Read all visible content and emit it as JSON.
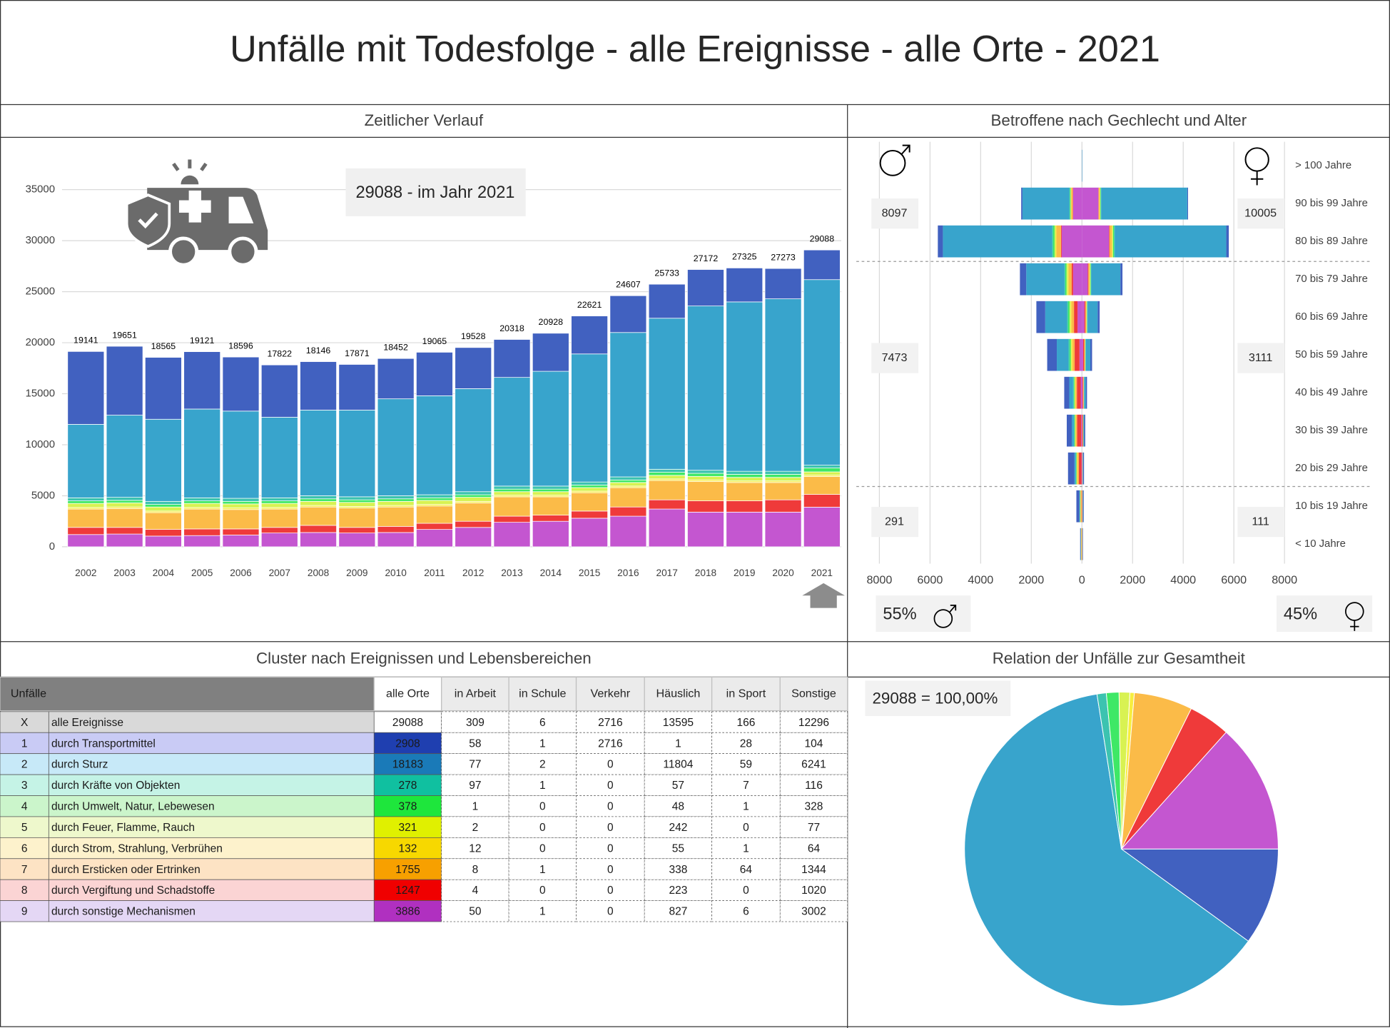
{
  "title": "Unfälle mit Todesfolge - alle Ereignisse - alle Orte - 2021",
  "chart_data": [
    {
      "type": "stacked_bar",
      "title": "Zeitlicher Verlauf",
      "annotation": "29088 - im Jahr 2021",
      "categories": [
        "2002",
        "2003",
        "2004",
        "2005",
        "2006",
        "2007",
        "2008",
        "2009",
        "2010",
        "2011",
        "2012",
        "2013",
        "2014",
        "2015",
        "2016",
        "2017",
        "2018",
        "2019",
        "2020",
        "2021"
      ],
      "series": [
        {
          "color": "#4161c0",
          "values": [
            7141,
            6751,
            6065,
            5621,
            5296,
            5122,
            4746,
            4471,
            3952,
            4265,
            4028,
            3718,
            3728,
            3721,
            3607,
            3333,
            3572,
            3325,
            2973,
            2908
          ]
        },
        {
          "color": "#38a4cc",
          "values": [
            7200,
            8050,
            8050,
            8700,
            8550,
            7900,
            8400,
            8500,
            9500,
            9700,
            10100,
            10650,
            11250,
            12550,
            14150,
            14800,
            16100,
            16600,
            16900,
            18183
          ]
        },
        {
          "color": "#3cc3b0",
          "values": [
            300,
            300,
            300,
            300,
            300,
            300,
            300,
            300,
            300,
            300,
            300,
            300,
            300,
            300,
            300,
            300,
            300,
            300,
            300,
            278
          ]
        },
        {
          "color": "#3ee866",
          "values": [
            250,
            250,
            250,
            250,
            250,
            250,
            250,
            250,
            250,
            250,
            250,
            250,
            250,
            250,
            250,
            300,
            300,
            300,
            300,
            378
          ]
        },
        {
          "color": "#d8f252",
          "values": [
            400,
            400,
            400,
            400,
            400,
            400,
            400,
            400,
            400,
            400,
            400,
            350,
            350,
            350,
            350,
            350,
            350,
            350,
            350,
            321
          ]
        },
        {
          "color": "#f7ee3e",
          "values": [
            150,
            150,
            150,
            150,
            150,
            150,
            150,
            150,
            150,
            150,
            150,
            150,
            150,
            150,
            150,
            150,
            150,
            150,
            150,
            132
          ]
        },
        {
          "color": "#fbbb48",
          "values": [
            1800,
            1850,
            1650,
            1950,
            1900,
            1800,
            1800,
            1900,
            1900,
            1700,
            1800,
            1900,
            1800,
            1800,
            1900,
            1900,
            1900,
            1800,
            1700,
            1755
          ]
        },
        {
          "color": "#ef3a3a",
          "values": [
            700,
            650,
            650,
            650,
            600,
            550,
            700,
            550,
            600,
            600,
            600,
            600,
            600,
            700,
            900,
            900,
            1100,
            1100,
            1200,
            1247
          ]
        },
        {
          "color": "#c456d0",
          "values": [
            1200,
            1250,
            1050,
            1100,
            1150,
            1350,
            1400,
            1350,
            1400,
            1700,
            1900,
            2400,
            2500,
            2800,
            3000,
            3700,
            3400,
            3400,
            3400,
            3886
          ]
        }
      ],
      "totals": [
        19141,
        19651,
        18565,
        19121,
        18596,
        17822,
        18146,
        17871,
        18452,
        19065,
        19528,
        20318,
        20928,
        22621,
        24607,
        25733,
        27172,
        27325,
        27273,
        29088
      ],
      "ylim": [
        0,
        35000
      ],
      "yticks": [
        0,
        5000,
        10000,
        15000,
        20000,
        25000,
        30000,
        35000
      ],
      "grid": true
    },
    {
      "type": "pyramid",
      "title": "Betroffene nach Gechlecht und Alter",
      "categories": [
        "> 100 Jahre",
        "90 bis 99 Jahre",
        "80 bis 89 Jahre",
        "70 bis 79 Jahre",
        "60 bis 69 Jahre",
        "50 bis 59 Jahre",
        "40 bis 49 Jahre",
        "30 bis 39 Jahre",
        "20 bis 29 Jahre",
        "10 bis 19 Jahre",
        "< 10 Jahre"
      ],
      "series": [
        {
          "color": "#4161c0",
          "male": [
            0,
            50,
            200,
            250,
            350,
            380,
            200,
            200,
            250,
            120,
            20
          ],
          "female": [
            0,
            30,
            100,
            80,
            80,
            70,
            40,
            40,
            35,
            35,
            15
          ]
        },
        {
          "color": "#38a4cc",
          "male": [
            4,
            1850,
            4300,
            1500,
            850,
            450,
            150,
            80,
            50,
            15,
            10
          ],
          "female": [
            12,
            3400,
            4400,
            1150,
            400,
            180,
            70,
            30,
            15,
            5,
            5
          ]
        },
        {
          "color": "#3cc3b0",
          "male": [
            0,
            20,
            50,
            40,
            50,
            50,
            25,
            20,
            15,
            5,
            3
          ],
          "female": [
            0,
            15,
            30,
            15,
            10,
            5,
            5,
            2,
            1,
            1,
            1
          ]
        },
        {
          "color": "#3ee866",
          "male": [
            0,
            30,
            60,
            50,
            60,
            50,
            30,
            25,
            25,
            15,
            3
          ],
          "female": [
            0,
            20,
            40,
            20,
            15,
            10,
            5,
            5,
            3,
            4,
            1
          ]
        },
        {
          "color": "#d8f252",
          "male": [
            0,
            20,
            60,
            60,
            50,
            40,
            20,
            15,
            10,
            5,
            5
          ],
          "female": [
            0,
            20,
            40,
            25,
            15,
            10,
            5,
            3,
            2,
            2,
            2
          ]
        },
        {
          "color": "#f7ee3e",
          "male": [
            0,
            5,
            12,
            20,
            25,
            25,
            15,
            10,
            10,
            5,
            2
          ],
          "female": [
            0,
            5,
            10,
            5,
            5,
            5,
            2,
            2,
            1,
            1,
            1
          ]
        },
        {
          "color": "#fbbb48",
          "male": [
            0,
            60,
            180,
            120,
            100,
            90,
            60,
            60,
            70,
            40,
            20
          ],
          "female": [
            0,
            40,
            90,
            50,
            35,
            30,
            18,
            13,
            10,
            15,
            12
          ]
        },
        {
          "color": "#ef3a3a",
          "male": [
            0,
            15,
            30,
            60,
            140,
            190,
            150,
            160,
            100,
            10,
            3
          ],
          "female": [
            0,
            10,
            20,
            25,
            40,
            40,
            30,
            25,
            10,
            5,
            2
          ]
        },
        {
          "color": "#c456d0",
          "male": [
            1,
            350,
            800,
            350,
            175,
            98,
            50,
            30,
            20,
            5,
            5
          ],
          "female": [
            3,
            650,
            1070,
            230,
            100,
            50,
            25,
            10,
            4,
            2,
            2
          ]
        }
      ],
      "xlim": [
        -8000,
        8000
      ],
      "xticks": [
        {
          "value": -8000,
          "label": "8000"
        },
        {
          "value": -6000,
          "label": "6000"
        },
        {
          "value": -4000,
          "label": "4000"
        },
        {
          "value": -2000,
          "label": "2000"
        },
        0,
        2000,
        4000,
        6000,
        8000
      ],
      "grid": true,
      "group_totals": {
        "male": [
          8097,
          7473,
          291
        ],
        "female": [
          10005,
          3111,
          111
        ]
      },
      "shares": {
        "values": [
          55,
          45
        ],
        "value_labels": [
          "55%",
          "45%"
        ]
      }
    },
    {
      "type": "pie",
      "title": "Relation der Unfälle zur Gesamtheit",
      "annotation": "29088 =  100,00%",
      "values": [
        2908,
        18183,
        278,
        378,
        321,
        132,
        1755,
        1247,
        3886
      ],
      "colors": [
        "#4161c0",
        "#38a4cc",
        "#3cc3b0",
        "#3ee866",
        "#d8f252",
        "#f7ee3e",
        "#fbbb48",
        "#ef3a3a",
        "#c456d0"
      ]
    }
  ],
  "table": {
    "title": "Cluster nach Ereignissen und Lebensbereichen",
    "header": [
      "Unfälle",
      "alle Orte",
      "in Arbeit",
      "in Schule",
      "Verkehr",
      "Häuslich",
      "in Sport",
      "Sonstige"
    ],
    "rows": [
      [
        "X",
        "alle Ereignisse",
        29088,
        309,
        6,
        2716,
        13595,
        166,
        12296
      ],
      [
        "1",
        "durch Transportmittel",
        2908,
        58,
        1,
        2716,
        1,
        28,
        104
      ],
      [
        "2",
        "durch Sturz",
        18183,
        77,
        2,
        0,
        11804,
        59,
        6241
      ],
      [
        "3",
        "durch Kräfte von Objekten",
        278,
        97,
        1,
        0,
        57,
        7,
        116
      ],
      [
        "4",
        "durch Umwelt, Natur, Lebewesen",
        378,
        1,
        0,
        0,
        48,
        1,
        328
      ],
      [
        "5",
        "durch Feuer, Flamme, Rauch",
        321,
        2,
        0,
        0,
        242,
        0,
        77
      ],
      [
        "6",
        "durch Strom, Strahlung, Verbrühen",
        132,
        12,
        0,
        0,
        55,
        1,
        64
      ],
      [
        "7",
        "durch Ersticken oder Ertrinken",
        1755,
        8,
        1,
        0,
        338,
        64,
        1344
      ],
      [
        "8",
        "durch Vergiftung und Schadstoffe",
        1247,
        4,
        0,
        0,
        223,
        0,
        1020
      ],
      [
        "9",
        "durch sonstige Mechanismen",
        3886,
        50,
        1,
        0,
        827,
        6,
        3002
      ]
    ],
    "row_colors": [
      "#d9d9d9",
      "#c9cbf5",
      "#c7e9f8",
      "#c5f3e6",
      "#cbf5cb",
      "#eef8cc",
      "#fdf2cc",
      "#fde3c4",
      "#fbd4d4",
      "#e4d7f5"
    ],
    "cell_colors": [
      "#ffffff",
      "#1f3fb0",
      "#1a7ab8",
      "#10c0a0",
      "#1ee63c",
      "#e0f000",
      "#f7d800",
      "#f7a000",
      "#f00000",
      "#b030c0"
    ]
  }
}
